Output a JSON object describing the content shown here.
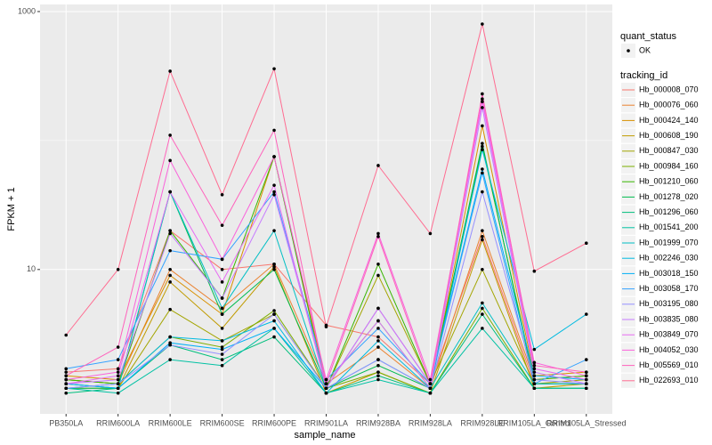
{
  "chart_data": {
    "type": "line",
    "x_label": "sample_name",
    "y_label": "FPKM + 1",
    "categories": [
      "PB350LA",
      "RRIM600LA",
      "RRIM600LE",
      "RRIM600SE",
      "RRIM600PE",
      "RRIM901LA",
      "RRIM928BA",
      "RRIM928LA",
      "RRIM928LE",
      "RRIM105LA_Control",
      "RRIM105LA_Stressed"
    ],
    "ylim": [
      0.76,
      1135
    ],
    "yticks": [
      10,
      1000
    ],
    "log_y": true,
    "grid": true,
    "legend_position": "right",
    "point_legend": {
      "title": "quant_status",
      "labels": [
        "OK"
      ]
    },
    "legend_title": "tracking_id",
    "series": [
      {
        "name": "Hb_000008_070",
        "color": "#F8766D",
        "values": [
          1.6,
          1.7,
          20,
          10,
          11,
          3.7,
          3.0,
          1.3,
          18,
          1.3,
          1.3
        ]
      },
      {
        "name": "Hb_000076_060",
        "color": "#EA8331",
        "values": [
          1.4,
          1.3,
          10,
          5,
          11,
          1.3,
          2.5,
          1.2,
          20,
          1.4,
          1.5
        ]
      },
      {
        "name": "Hb_000424_140",
        "color": "#D89000",
        "values": [
          1.5,
          1.4,
          9,
          4.5,
          75,
          1.3,
          4,
          1.2,
          130,
          1.5,
          1.6
        ]
      },
      {
        "name": "Hb_000608_190",
        "color": "#C09B00",
        "values": [
          1.2,
          1.2,
          8,
          3.5,
          10.5,
          1.1,
          1.6,
          1.1,
          17,
          1.2,
          1.3
        ]
      },
      {
        "name": "Hb_000847_030",
        "color": "#A3A500",
        "values": [
          1.3,
          1.2,
          4.9,
          2.8,
          4.5,
          1.2,
          9,
          1.3,
          10,
          1.3,
          1.4
        ]
      },
      {
        "name": "Hb_000984_160",
        "color": "#7CAE00",
        "values": [
          1.4,
          1.3,
          3.0,
          2.5,
          4.8,
          1.2,
          1.6,
          1.1,
          5,
          1.2,
          1.2
        ]
      },
      {
        "name": "Hb_001210_060",
        "color": "#39B600",
        "values": [
          1.4,
          1.3,
          20,
          6,
          75,
          1.2,
          11,
          1.3,
          90,
          1.4,
          1.5
        ]
      },
      {
        "name": "Hb_001278_020",
        "color": "#00BB4E",
        "values": [
          1.2,
          1.2,
          40,
          4.5,
          10,
          1.2,
          1.8,
          1.2,
          95,
          1.3,
          1.3
        ]
      },
      {
        "name": "Hb_001296_060",
        "color": "#00BF7D",
        "values": [
          1.1,
          1.2,
          2.6,
          2.0,
          3.0,
          1.1,
          1.5,
          1.1,
          4.5,
          1.2,
          1.2
        ]
      },
      {
        "name": "Hb_001541_200",
        "color": "#00C1A3",
        "values": [
          1.2,
          1.1,
          2.0,
          1.8,
          3.5,
          1.1,
          1.4,
          1.1,
          3.5,
          1.2,
          1.2
        ]
      },
      {
        "name": "Hb_001999_070",
        "color": "#00BFC4",
        "values": [
          1.3,
          1.2,
          40,
          5,
          20,
          1.2,
          2.0,
          1.2,
          5.5,
          1.3,
          1.3
        ]
      },
      {
        "name": "Hb_002246_030",
        "color": "#00BAE0",
        "values": [
          1.2,
          1.3,
          3.0,
          2.8,
          4.0,
          1.1,
          2.8,
          1.2,
          85,
          2.4,
          4.5
        ]
      },
      {
        "name": "Hb_003018_150",
        "color": "#00B0F6",
        "values": [
          1.3,
          1.2,
          2.7,
          2.4,
          3.5,
          1.2,
          5.0,
          1.3,
          60,
          1.5,
          1.4
        ]
      },
      {
        "name": "Hb_003058_170",
        "color": "#35A2FF",
        "values": [
          1.7,
          2.0,
          14,
          12,
          40,
          1.4,
          3.5,
          1.3,
          56,
          1.3,
          2.0
        ]
      },
      {
        "name": "Hb_003195_080",
        "color": "#9590FF",
        "values": [
          1.2,
          1.3,
          2.6,
          2.2,
          4.5,
          1.2,
          2.0,
          1.2,
          40,
          1.4,
          1.3
        ]
      },
      {
        "name": "Hb_003835_080",
        "color": "#C77CFF",
        "values": [
          1.3,
          1.4,
          19,
          6,
          38,
          1.3,
          4,
          1.2,
          180,
          1.6,
          1.3
        ]
      },
      {
        "name": "Hb_003849_070",
        "color": "#E76BF3",
        "values": [
          1.3,
          1.5,
          40,
          8,
          45,
          1.2,
          5,
          1.3,
          200,
          1.7,
          1.4
        ]
      },
      {
        "name": "Hb_004052_030",
        "color": "#FA62DB",
        "values": [
          1.4,
          1.6,
          70,
          12,
          75,
          1.4,
          19,
          1.4,
          210,
          1.9,
          1.5
        ]
      },
      {
        "name": "Hb_005569_010",
        "color": "#FF62BC",
        "values": [
          1.5,
          2.5,
          110,
          22,
          120,
          1.3,
          18,
          1.3,
          230,
          1.8,
          1.6
        ]
      },
      {
        "name": "Hb_022693_010",
        "color": "#FF6C91",
        "values": [
          3.1,
          10,
          345,
          38,
          360,
          3.6,
          64,
          19,
          800,
          9.7,
          16
        ]
      }
    ]
  }
}
